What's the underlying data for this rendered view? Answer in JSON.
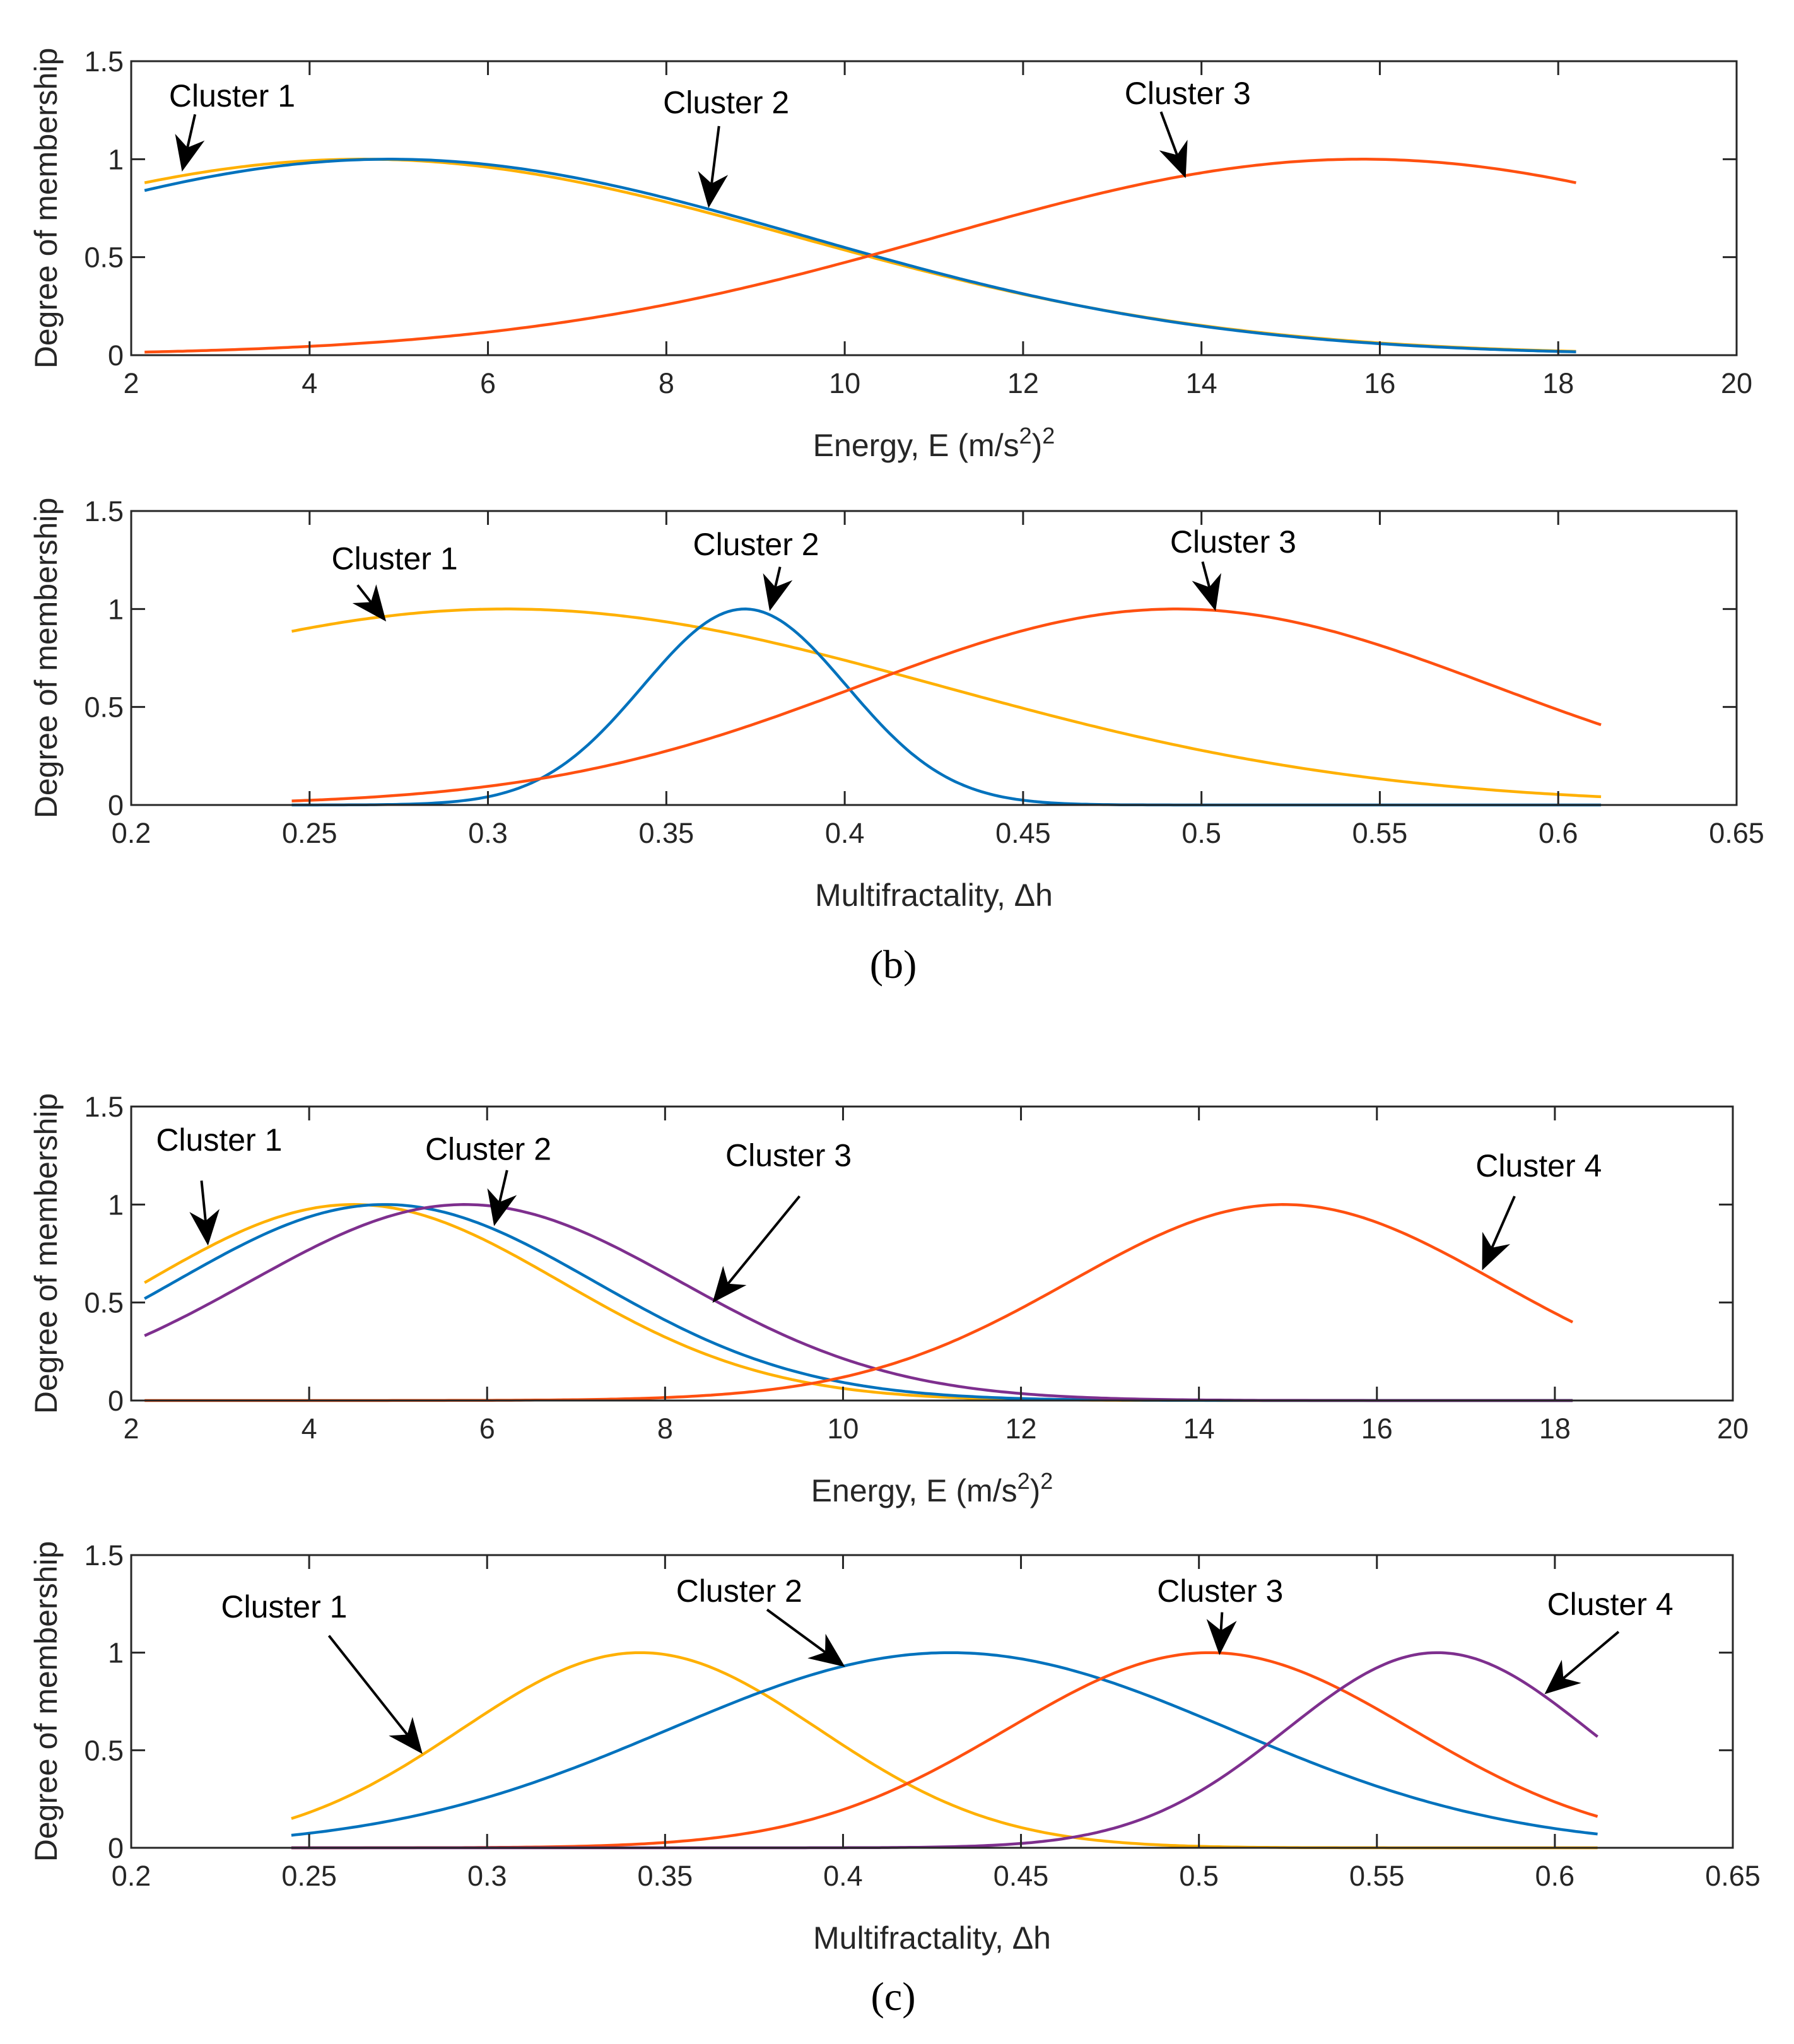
{
  "panels": [
    {
      "label": "(b)",
      "letter": "b"
    },
    {
      "label": "(c)",
      "letter": "c"
    }
  ],
  "chart_data": [
    {
      "type": "line",
      "panel": "b",
      "title": "",
      "xlabel": "Energy, E (m/s²)²",
      "xlabel_base": "Energy, E (m/s",
      "xlabel_sup1": "2",
      "xlabel_mid": ")",
      "xlabel_sup2": "2",
      "ylabel": "Degree of membership",
      "xlim": [
        2,
        20
      ],
      "ylim": [
        0,
        1.5
      ],
      "xticks": [
        "2",
        "4",
        "6",
        "8",
        "10",
        "12",
        "14",
        "16",
        "18",
        "20"
      ],
      "yticks": [
        "0",
        "0.5",
        "1",
        "1.5"
      ],
      "domain": [
        2.15,
        18.2
      ],
      "series": [
        {
          "name": "Cluster 1",
          "color": "#FFB000",
          "center": 4.6,
          "sigma": 4.84
        },
        {
          "name": "Cluster 2",
          "color": "#0072BD",
          "center": 4.9,
          "sigma": 4.66
        },
        {
          "name": "Cluster 3",
          "color": "#FF5010",
          "center": 15.8,
          "sigma": 4.74
        }
      ],
      "annotations": [
        "Cluster 1",
        "Cluster 2",
        "Cluster 3"
      ]
    },
    {
      "type": "line",
      "panel": "b",
      "title": "",
      "xlabel": "Multifractality,  Δh",
      "ylabel": "Degree of membership",
      "xlim": [
        0.2,
        0.65
      ],
      "ylim": [
        0,
        1.5
      ],
      "xticks": [
        "0.2",
        "0.25",
        "0.3",
        "0.35",
        "0.4",
        "0.45",
        "0.5",
        "0.55",
        "0.6",
        "0.65"
      ],
      "yticks": [
        "0",
        "0.5",
        "1",
        "1.5"
      ],
      "domain": [
        0.245,
        0.612
      ],
      "series": [
        {
          "name": "Cluster 1",
          "color": "#FFB000",
          "center": 0.305,
          "sigma": 0.122
        },
        {
          "name": "Cluster 2",
          "color": "#0072BD",
          "center": 0.372,
          "sigma": 0.0286
        },
        {
          "name": "Cluster 3",
          "color": "#FF5010",
          "center": 0.493,
          "sigma": 0.089
        }
      ],
      "annotations": [
        "Cluster 1",
        "Cluster 2",
        "Cluster 3"
      ]
    },
    {
      "type": "line",
      "panel": "c",
      "title": "",
      "xlabel": "Energy, E (m/s²)²",
      "xlabel_base": "Energy, E (m/s",
      "xlabel_sup1": "2",
      "xlabel_mid": ")",
      "xlabel_sup2": "2",
      "ylabel": "Degree of membership",
      "xlim": [
        2,
        20
      ],
      "ylim": [
        0,
        1.5
      ],
      "xticks": [
        "2",
        "4",
        "6",
        "8",
        "10",
        "12",
        "14",
        "16",
        "18",
        "20"
      ],
      "yticks": [
        "0",
        "0.5",
        "1",
        "1.5"
      ],
      "domain": [
        2.15,
        18.2
      ],
      "series": [
        {
          "name": "Cluster 1",
          "color": "#FFB000",
          "center": 4.5,
          "sigma": 2.33
        },
        {
          "name": "Cluster 2",
          "color": "#0072BD",
          "center": 4.85,
          "sigma": 2.36
        },
        {
          "name": "Cluster 3",
          "color": "#7E2F8E",
          "center": 5.75,
          "sigma": 2.42
        },
        {
          "name": "Cluster 4",
          "color": "#FF5010",
          "center": 14.95,
          "sigma": 2.4
        }
      ],
      "annotations": [
        "Cluster 1",
        "Cluster 2",
        "Cluster 3",
        "Cluster 4"
      ]
    },
    {
      "type": "line",
      "panel": "c",
      "title": "",
      "xlabel": "Multifractality,  Δh",
      "ylabel": "Degree of membership",
      "xlim": [
        0.2,
        0.65
      ],
      "ylim": [
        0,
        1.5
      ],
      "xticks": [
        "0.2",
        "0.25",
        "0.3",
        "0.35",
        "0.4",
        "0.45",
        "0.5",
        "0.55",
        "0.6",
        "0.65"
      ],
      "yticks": [
        "0",
        "0.5",
        "1",
        "1.5"
      ],
      "domain": [
        0.245,
        0.612
      ],
      "series": [
        {
          "name": "Cluster 1",
          "color": "#FFB000",
          "center": 0.343,
          "sigma": 0.0503
        },
        {
          "name": "Cluster 2",
          "color": "#0072BD",
          "center": 0.43,
          "sigma": 0.079
        },
        {
          "name": "Cluster 3",
          "color": "#FF5010",
          "center": 0.503,
          "sigma": 0.057
        },
        {
          "name": "Cluster 4",
          "color": "#7E2F8E",
          "center": 0.567,
          "sigma": 0.0424
        }
      ],
      "annotations": [
        "Cluster 1",
        "Cluster 2",
        "Cluster 3",
        "Cluster 4"
      ]
    }
  ]
}
